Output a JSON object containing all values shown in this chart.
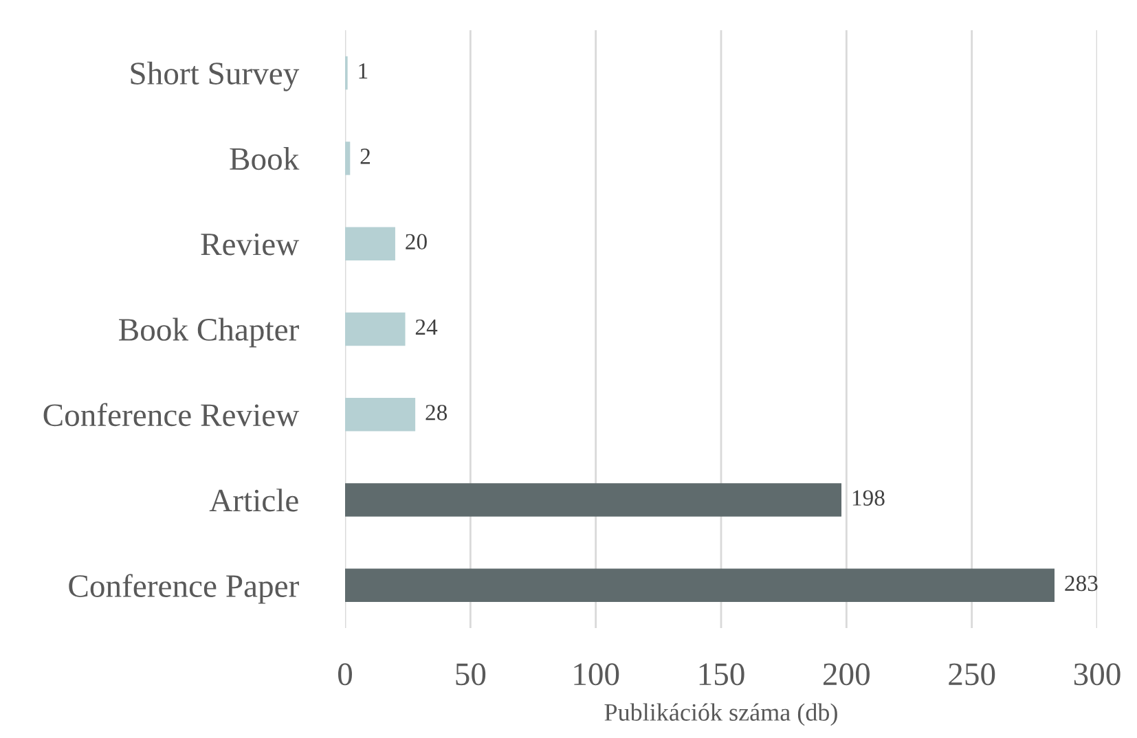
{
  "chart_data": {
    "type": "bar",
    "orientation": "horizontal",
    "xlabel": "Publikációk száma (db)",
    "categories": [
      "Short Survey",
      "Book",
      "Review",
      "Book Chapter",
      "Conference Review",
      "Article",
      "Conference Paper"
    ],
    "values": [
      1,
      2,
      20,
      24,
      28,
      198,
      283
    ],
    "colors": [
      "#b5d0d3",
      "#b5d0d3",
      "#b5d0d3",
      "#b5d0d3",
      "#b5d0d3",
      "#5f6b6d",
      "#5f6b6d"
    ],
    "xlim": [
      0,
      300
    ],
    "xticks": [
      0,
      50,
      100,
      150,
      200,
      250,
      300
    ],
    "grid": "x",
    "data_labels": true
  }
}
